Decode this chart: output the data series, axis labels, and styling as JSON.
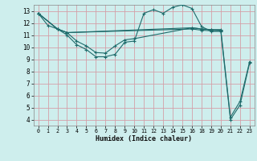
{
  "xlabel": "Humidex (Indice chaleur)",
  "bg_color": "#ceeeed",
  "grid_color": "#d4a0a8",
  "line_color": "#1e6b6b",
  "xlim": [
    -0.5,
    23.5
  ],
  "ylim": [
    3.5,
    13.5
  ],
  "xticks": [
    0,
    1,
    2,
    3,
    4,
    5,
    6,
    7,
    8,
    9,
    10,
    11,
    12,
    13,
    14,
    15,
    16,
    18,
    19,
    20,
    21,
    22,
    23
  ],
  "yticks": [
    4,
    5,
    6,
    7,
    8,
    9,
    10,
    11,
    12,
    13
  ],
  "lines": [
    {
      "x": [
        0,
        1,
        2,
        3,
        4,
        5,
        6,
        7,
        8,
        9,
        10,
        11,
        12,
        13,
        14,
        15,
        16,
        18,
        19,
        20,
        21,
        22,
        23
      ],
      "y": [
        12.8,
        11.8,
        11.5,
        11.0,
        10.2,
        9.8,
        9.2,
        9.2,
        9.4,
        10.4,
        10.5,
        12.8,
        13.1,
        12.8,
        13.3,
        13.5,
        13.2,
        11.7,
        11.3,
        11.3,
        4.0,
        5.2,
        8.7
      ]
    },
    {
      "x": [
        0,
        2,
        3,
        16,
        18,
        19,
        20
      ],
      "y": [
        12.8,
        11.5,
        11.2,
        11.5,
        11.4,
        11.35,
        11.35
      ]
    },
    {
      "x": [
        0,
        2,
        3,
        16,
        18,
        19,
        20
      ],
      "y": [
        12.8,
        11.5,
        11.2,
        11.6,
        11.5,
        11.45,
        11.4
      ]
    },
    {
      "x": [
        0,
        2,
        3,
        4,
        5,
        6,
        7,
        8,
        9,
        10,
        16,
        18,
        19,
        20,
        21,
        22,
        23
      ],
      "y": [
        12.8,
        11.5,
        11.2,
        10.5,
        10.1,
        9.55,
        9.5,
        10.1,
        10.6,
        10.7,
        11.6,
        11.5,
        11.45,
        11.45,
        4.2,
        5.5,
        8.8
      ]
    }
  ]
}
